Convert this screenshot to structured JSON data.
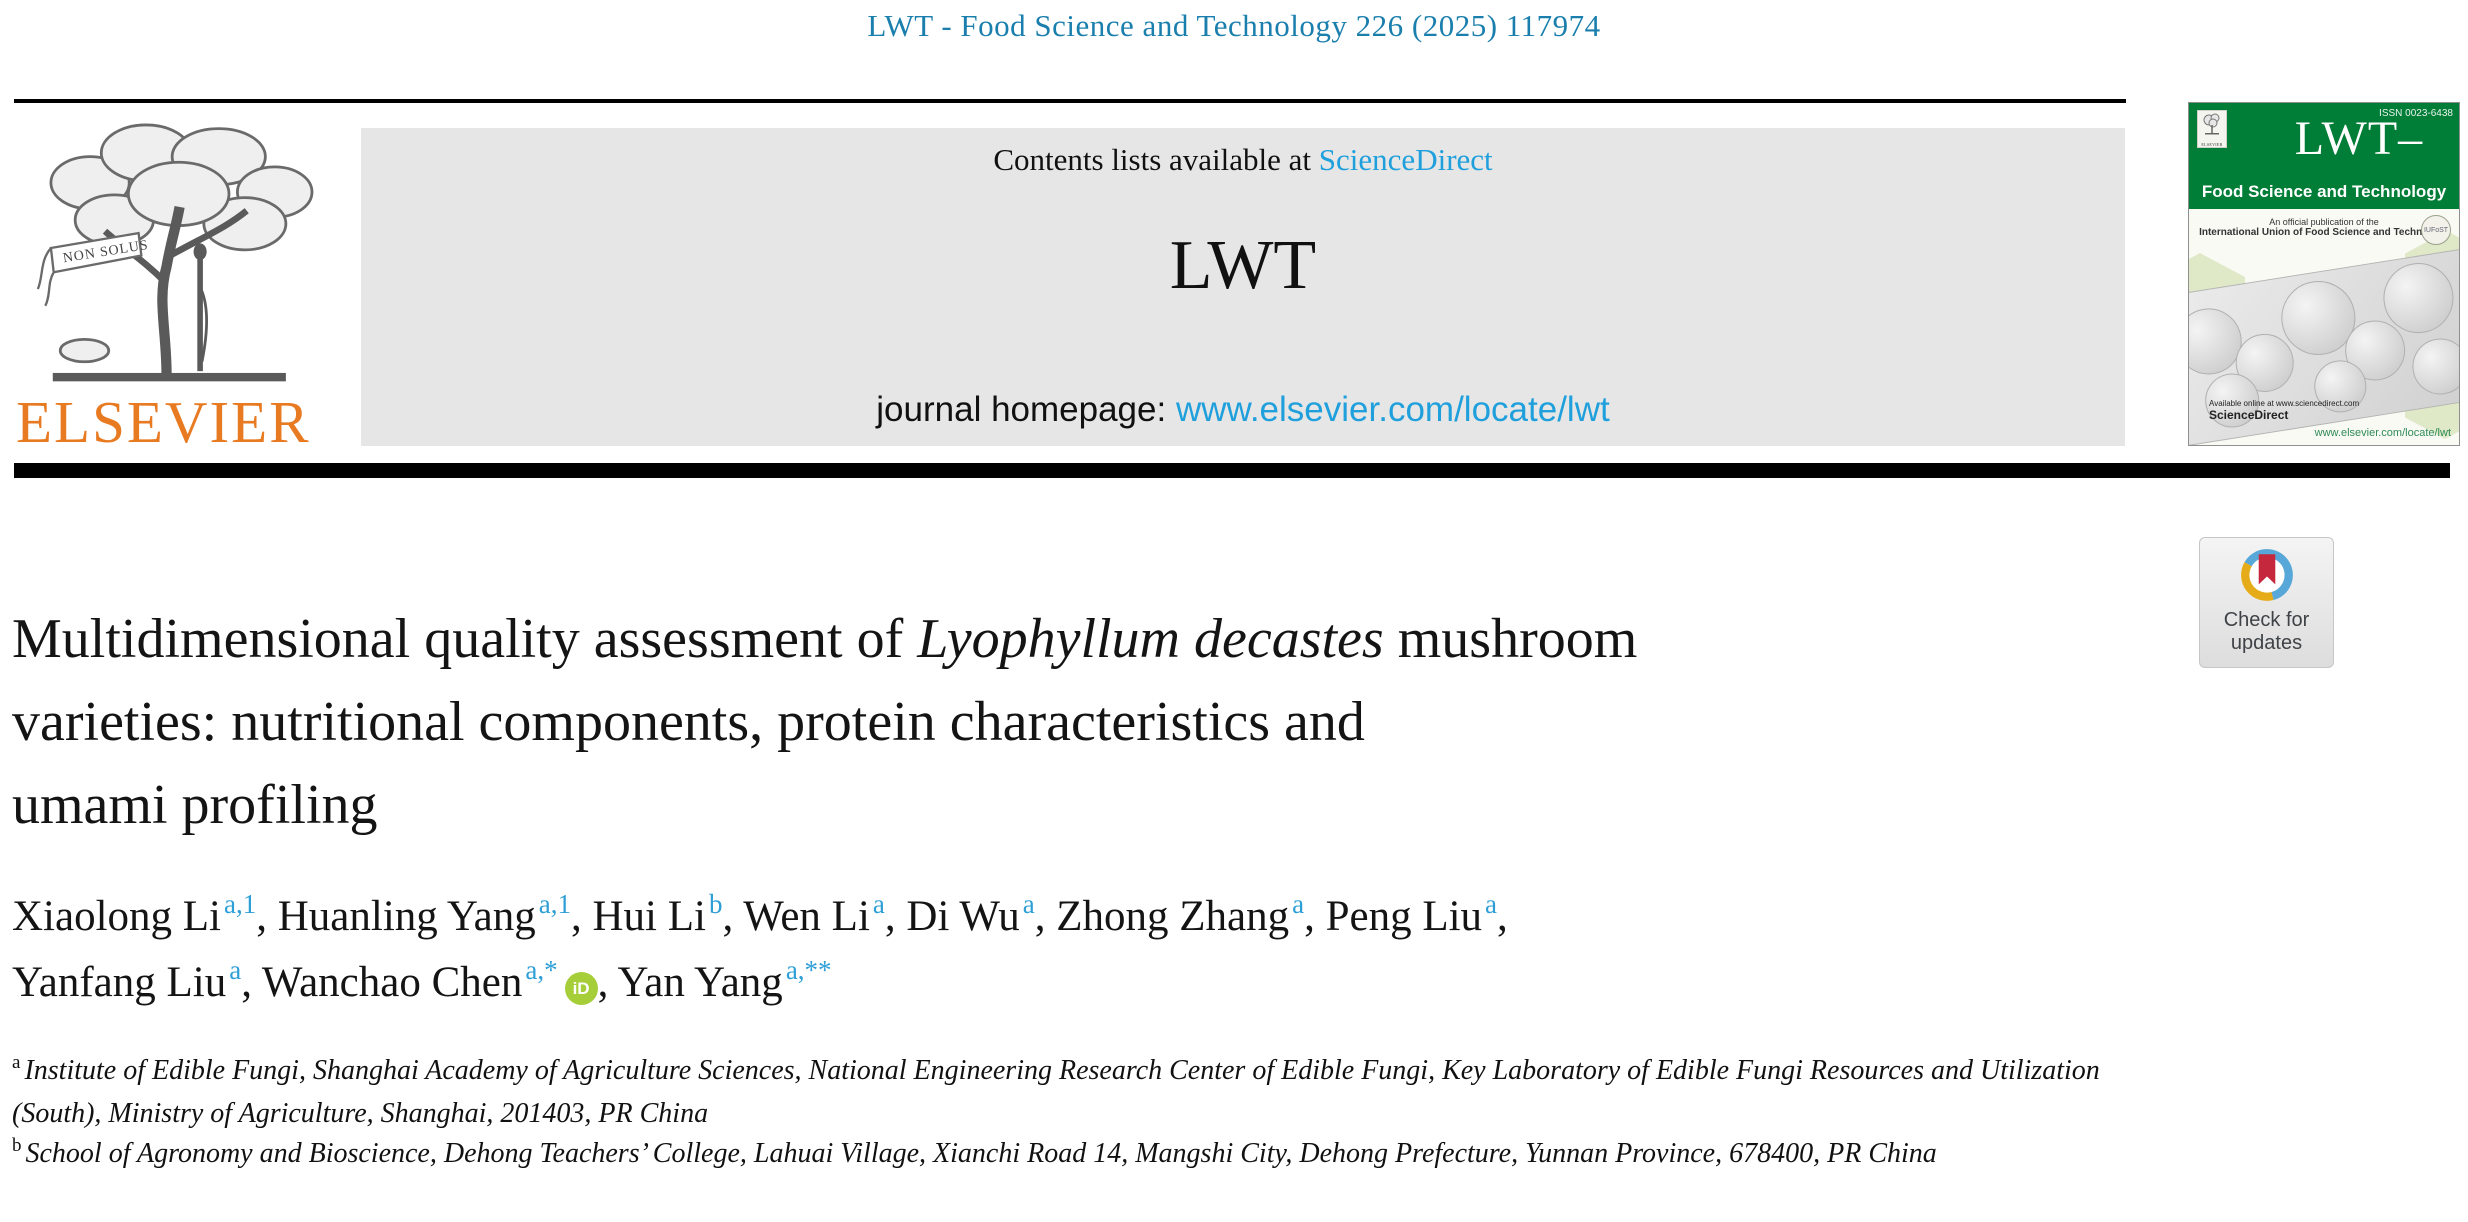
{
  "page": {
    "journal_ref": "LWT - Food Science and Technology 226 (2025) 117974"
  },
  "header": {
    "publisher": "ELSEVIER",
    "logo_motto": "NON SOLUS",
    "banner": {
      "contents_prefix": "Contents lists available at ",
      "contents_link": "ScienceDirect",
      "journal_title": "LWT",
      "homepage_prefix": "journal homepage: ",
      "homepage_link": "www.elsevier.com/locate/lwt"
    },
    "cover": {
      "issn": "ISSN 0023-6438",
      "mini_publisher": "ELSEVIER",
      "title": "LWT–",
      "subtitle": "Food Science and Technology",
      "note_line1": "An official publication of the",
      "note_line2": "International Union of Food Science and Technology",
      "iufost_label": "IUFoST",
      "available_online": "Available online at www.sciencedirect.com",
      "sciencedirect": "ScienceDirect",
      "url": "www.elsevier.com/locate/lwt"
    }
  },
  "badge": {
    "line1": "Check for",
    "line2": "updates"
  },
  "article": {
    "title_lines": [
      [
        {
          "t": "Multidimensional quality assessment of "
        },
        {
          "t": "Lyophyllum decastes",
          "italic": true
        },
        {
          "t": " mushroom"
        }
      ],
      [
        {
          "t": "varieties: nutritional components, protein characteristics and"
        }
      ],
      [
        {
          "t": "umami profiling"
        }
      ]
    ],
    "orcid_label": "iD",
    "author_lines": [
      [
        {
          "name": "Xiaolong Li",
          "sup": "a,1",
          "sep": ", "
        },
        {
          "name": "Huanling Yang",
          "sup": "a,1",
          "sep": ", "
        },
        {
          "name": "Hui Li",
          "sup": "b",
          "sep": ", "
        },
        {
          "name": "Wen Li",
          "sup": "a",
          "sep": ", "
        },
        {
          "name": "Di Wu",
          "sup": "a",
          "sep": ", "
        },
        {
          "name": "Zhong Zhang",
          "sup": "a",
          "sep": ", "
        },
        {
          "name": "Peng Liu",
          "sup": "a",
          "sep": ","
        }
      ],
      [
        {
          "name": "Yanfang Liu",
          "sup": "a",
          "sep": ", "
        },
        {
          "name": "Wanchao Chen",
          "sup": "a,*",
          "orcid": true,
          "sep": ", "
        },
        {
          "name": "Yan Yang",
          "sup": "a,**",
          "sep": ""
        }
      ]
    ],
    "affiliations": [
      {
        "sup": "a",
        "text": "Institute of Edible Fungi, Shanghai Academy of Agriculture Sciences, National Engineering Research Center of Edible Fungi, Key Laboratory of Edible Fungi Resources and Utilization (South), Ministry of Agriculture, Shanghai, 201403, PR China"
      },
      {
        "sup": "b",
        "text": "School of Agronomy and Bioscience, Dehong Teachers’ College, Lahuai Village, Xianchi Road 14, Mangshi City, Dehong Prefecture, Yunnan Province, 678400, PR China"
      }
    ]
  },
  "colors": {
    "journal_ref_teal": "#1b7fad",
    "link_blue": "#1fa0dc",
    "superscript_blue": "#2e9fd6",
    "banner_gray": "#e6e6e6",
    "elsevier_orange": "#e87a22",
    "cover_green": "#007d36",
    "orcid_green": "#a6ce39",
    "badge_blue": "#57a8d8",
    "badge_yellow": "#e5ab19",
    "badge_red": "#c5283c"
  }
}
